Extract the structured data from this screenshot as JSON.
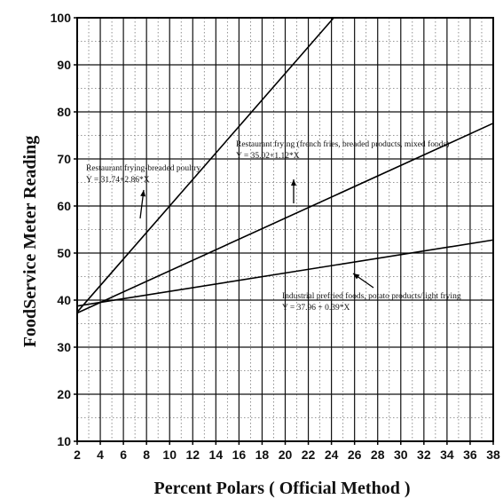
{
  "chart_data": {
    "type": "line",
    "title": "",
    "xlabel": "Percent Polars ( Official Method )",
    "ylabel": "FoodService Meter Reading",
    "xlim": [
      2,
      38
    ],
    "ylim": [
      10,
      100
    ],
    "x_ticks": [
      "2",
      "4",
      "6",
      "8",
      "10",
      "12",
      "14",
      "16",
      "18",
      "20",
      "22",
      "24",
      "26",
      "28",
      "30",
      "32",
      "34",
      "36",
      "38"
    ],
    "y_ticks": [
      "10",
      "20",
      "30",
      "40",
      "50",
      "60",
      "70",
      "80",
      "90",
      "100"
    ],
    "grid": true,
    "series": [
      {
        "name": "Restaurant frying-breaded poultry",
        "equation": "Y = 31.74+2.86*X",
        "x": [
          2,
          24.2
        ],
        "y": [
          37.46,
          100
        ]
      },
      {
        "name": "Restaurant frying (french fries, breaded products, mixed foods)",
        "equation": "Y = 35.02+1.12*X",
        "x": [
          2,
          38
        ],
        "y": [
          37.26,
          77.58
        ]
      },
      {
        "name": "Industrial prefried foods, potato products/light frying",
        "equation": "Y = 37.96 + 0.39*X",
        "x": [
          2,
          38
        ],
        "y": [
          38.74,
          52.78
        ]
      }
    ],
    "annotations": [
      {
        "line1": "Restaurant frying-breaded poultry",
        "line2": "Y = 31.74+2.86*X"
      },
      {
        "line1": "Restaurant frying (french fries, breaded products, mixed foods)",
        "line2": "Y = 35.02+1.12*X"
      },
      {
        "line1": "Industrial prefried foods, potato products/light frying",
        "line2": "Y = 37.96 + 0.39*X"
      }
    ]
  }
}
